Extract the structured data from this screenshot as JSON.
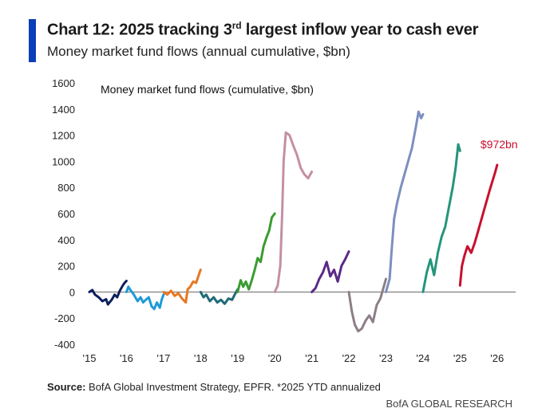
{
  "header": {
    "title_main": "Chart 12: 2025 tracking 3",
    "title_sup": "rd",
    "title_rest": " largest inflow year to cash ever",
    "subtitle": "Money market fund flows (annual cumulative, $bn)"
  },
  "footer": {
    "source_label": "Source:",
    "source_text": " BofA Global Investment Strategy, EPFR. *2025 YTD annualized",
    "brand": "BofA GLOBAL RESEARCH"
  },
  "colors": {
    "accent": "#0a3eb8",
    "annotation": "#c8102e"
  },
  "chart_data": {
    "type": "line",
    "title": "Money market fund flows (cumulative, $bn)",
    "xlabel": "",
    "ylabel": "",
    "xlim": [
      2015,
      2026.5
    ],
    "ylim": [
      -400,
      1600
    ],
    "yticks": [
      -400,
      -200,
      0,
      200,
      400,
      600,
      800,
      1000,
      1200,
      1400,
      1600
    ],
    "xticks": [
      2015,
      2016,
      2017,
      2018,
      2019,
      2020,
      2021,
      2022,
      2023,
      2024,
      2025,
      2026
    ],
    "xtick_labels": [
      "'15",
      "'16",
      "'17",
      "'18",
      "'19",
      "'20",
      "'21",
      "'22",
      "'23",
      "'24",
      "'25",
      "'26"
    ],
    "grid": false,
    "annotations": [
      {
        "text": "$972bn",
        "x": 2025.55,
        "y": 1100
      }
    ],
    "series": [
      {
        "year": 2015,
        "color": "#0d1f5c",
        "x": [
          2015.0,
          2015.08,
          2015.15,
          2015.25,
          2015.35,
          2015.45,
          2015.5,
          2015.6,
          2015.68,
          2015.75,
          2015.82,
          2015.9,
          2015.95,
          2016.0
        ],
        "y": [
          0,
          15,
          -20,
          -40,
          -70,
          -55,
          -95,
          -60,
          -20,
          -40,
          10,
          50,
          70,
          85
        ]
      },
      {
        "year": 2016,
        "color": "#1e9ad6",
        "x": [
          2016.0,
          2016.05,
          2016.12,
          2016.2,
          2016.3,
          2016.38,
          2016.45,
          2016.52,
          2016.6,
          2016.68,
          2016.75,
          2016.82,
          2016.9,
          2016.95,
          2017.0
        ],
        "y": [
          0,
          40,
          10,
          -20,
          -70,
          -40,
          -80,
          -60,
          -40,
          -110,
          -130,
          -80,
          -120,
          -60,
          -20
        ]
      },
      {
        "year": 2017,
        "color": "#e87722",
        "x": [
          2017.0,
          2017.1,
          2017.2,
          2017.3,
          2017.4,
          2017.5,
          2017.6,
          2017.65,
          2017.72,
          2017.8,
          2017.88,
          2017.95,
          2018.0
        ],
        "y": [
          0,
          -20,
          10,
          -30,
          -10,
          -50,
          -80,
          20,
          40,
          80,
          70,
          130,
          170
        ]
      },
      {
        "year": 2018,
        "color": "#1f6a78",
        "x": [
          2018.0,
          2018.08,
          2018.15,
          2018.25,
          2018.35,
          2018.45,
          2018.55,
          2018.65,
          2018.75,
          2018.85,
          2018.92,
          2019.0
        ],
        "y": [
          0,
          -40,
          -20,
          -70,
          -40,
          -80,
          -60,
          -90,
          -50,
          -60,
          -20,
          20
        ]
      },
      {
        "year": 2019,
        "color": "#3a9b32",
        "x": [
          2019.0,
          2019.08,
          2019.15,
          2019.22,
          2019.3,
          2019.38,
          2019.46,
          2019.54,
          2019.62,
          2019.7,
          2019.78,
          2019.85,
          2019.92,
          2020.0
        ],
        "y": [
          0,
          90,
          40,
          80,
          20,
          90,
          170,
          260,
          230,
          350,
          420,
          470,
          570,
          600
        ]
      },
      {
        "year": 2020,
        "color": "#c48fa6",
        "x": [
          2020.0,
          2020.08,
          2020.15,
          2020.2,
          2020.24,
          2020.3,
          2020.4,
          2020.5,
          2020.6,
          2020.7,
          2020.8,
          2020.9,
          2021.0
        ],
        "y": [
          0,
          50,
          200,
          600,
          1000,
          1220,
          1200,
          1120,
          1050,
          950,
          900,
          870,
          920
        ]
      },
      {
        "year": 2021,
        "color": "#5b2a86",
        "x": [
          2021.0,
          2021.1,
          2021.2,
          2021.3,
          2021.4,
          2021.5,
          2021.6,
          2021.7,
          2021.8,
          2021.9,
          2022.0
        ],
        "y": [
          0,
          30,
          100,
          150,
          230,
          120,
          170,
          80,
          200,
          250,
          310
        ]
      },
      {
        "year": 2022,
        "color": "#8d7e88",
        "x": [
          2022.0,
          2022.08,
          2022.16,
          2022.25,
          2022.35,
          2022.45,
          2022.55,
          2022.65,
          2022.75,
          2022.85,
          2022.92,
          2023.0
        ],
        "y": [
          0,
          -150,
          -250,
          -300,
          -280,
          -220,
          -180,
          -230,
          -100,
          -50,
          20,
          100
        ]
      },
      {
        "year": 2023,
        "color": "#7c8fbf",
        "x": [
          2023.0,
          2023.1,
          2023.15,
          2023.22,
          2023.3,
          2023.4,
          2023.5,
          2023.6,
          2023.7,
          2023.8,
          2023.88,
          2023.95,
          2024.0
        ],
        "y": [
          0,
          100,
          300,
          560,
          680,
          800,
          900,
          1000,
          1100,
          1250,
          1380,
          1330,
          1360
        ]
      },
      {
        "year": 2024,
        "color": "#25957a",
        "x": [
          2024.0,
          2024.1,
          2024.2,
          2024.3,
          2024.4,
          2024.5,
          2024.6,
          2024.7,
          2024.8,
          2024.88,
          2024.95,
          2025.0
        ],
        "y": [
          0,
          150,
          250,
          130,
          300,
          420,
          500,
          650,
          800,
          950,
          1130,
          1080
        ]
      },
      {
        "year": 2025,
        "color": "#c8102e",
        "x": [
          2025.0,
          2025.05,
          2025.12,
          2025.2,
          2025.3,
          2025.4,
          2025.5,
          2025.65,
          2025.8,
          2025.95,
          2026.0
        ],
        "y": [
          50,
          200,
          280,
          350,
          300,
          380,
          480,
          630,
          780,
          920,
          972
        ]
      }
    ]
  }
}
